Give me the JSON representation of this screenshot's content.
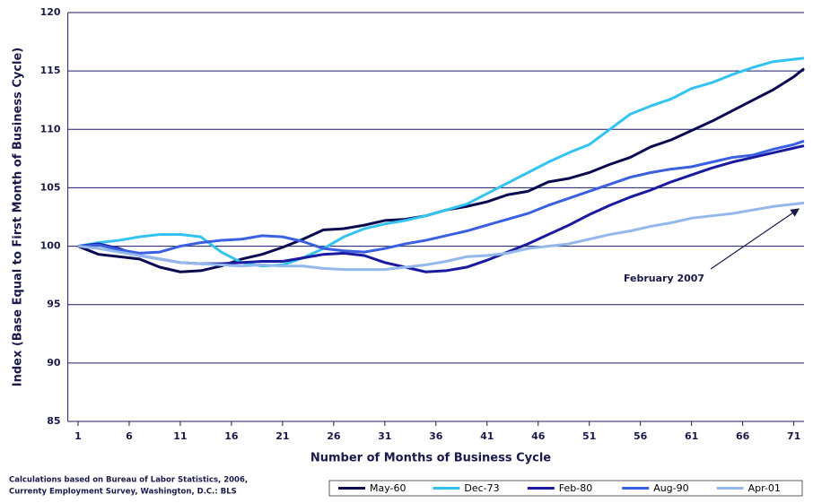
{
  "chart_data": {
    "type": "line",
    "x_label": "Number of Months of Business Cycle",
    "y_label": "Index (Base Equal to First Month of Business Cycle)",
    "annotation": "February 2007",
    "note": [
      "Calculations based on Bureau of Labor Statistics, 2006,",
      "Currenty Employment Survey, Washington, D.C.: BLS"
    ],
    "x": [
      1,
      3,
      5,
      7,
      9,
      11,
      13,
      15,
      17,
      19,
      21,
      23,
      25,
      27,
      29,
      31,
      33,
      35,
      37,
      39,
      41,
      43,
      45,
      47,
      49,
      51,
      53,
      55,
      57,
      59,
      61,
      63,
      65,
      67,
      69,
      71,
      72
    ],
    "series": [
      {
        "name": "May-60",
        "color": "#0a0a50",
        "values": [
          100,
          99.3,
          99.1,
          98.9,
          98.2,
          97.8,
          97.9,
          98.3,
          98.9,
          99.3,
          99.9,
          100.6,
          101.4,
          101.5,
          101.8,
          102.2,
          102.3,
          102.6,
          103.1,
          103.4,
          103.8,
          104.4,
          104.7,
          105.5,
          105.8,
          106.3,
          107.0,
          107.6,
          108.5,
          109.1,
          109.9,
          110.7,
          111.6,
          112.5,
          113.4,
          114.5,
          115.2
        ]
      },
      {
        "name": "Dec-73",
        "color": "#33c3f0",
        "values": [
          100,
          100.3,
          100.5,
          100.8,
          101,
          101,
          100.8,
          99.5,
          98.6,
          98.3,
          98.4,
          99,
          99.8,
          100.8,
          101.5,
          101.9,
          102.2,
          102.6,
          103.1,
          103.6,
          104.5,
          105.4,
          106.3,
          107.2,
          108,
          108.7,
          110,
          111.3,
          112,
          112.6,
          113.5,
          114,
          114.7,
          115.3,
          115.8,
          116,
          116.1
        ]
      },
      {
        "name": "Feb-80",
        "color": "#1a1aa0",
        "values": [
          100,
          100.2,
          99.8,
          99.2,
          98.9,
          98.6,
          98.5,
          98.5,
          98.6,
          98.7,
          98.7,
          99.0,
          99.3,
          99.4,
          99.2,
          98.6,
          98.2,
          97.8,
          97.9,
          98.2,
          98.8,
          99.5,
          100.2,
          101,
          101.8,
          102.7,
          103.5,
          104.2,
          104.8,
          105.5,
          106.1,
          106.7,
          107.2,
          107.6,
          108,
          108.4,
          108.6
        ]
      },
      {
        "name": "Aug-90",
        "color": "#3a5fe0",
        "values": [
          100,
          100.1,
          99.7,
          99.4,
          99.5,
          100,
          100.3,
          100.5,
          100.6,
          100.9,
          100.8,
          100.4,
          99.8,
          99.6,
          99.5,
          99.8,
          100.2,
          100.5,
          100.9,
          101.3,
          101.8,
          102.3,
          102.8,
          103.5,
          104.1,
          104.7,
          105.3,
          105.9,
          106.3,
          106.6,
          106.8,
          107.2,
          107.6,
          107.8,
          108.3,
          108.7,
          109
        ]
      },
      {
        "name": "Apr-01",
        "color": "#93b8ec",
        "values": [
          100,
          99.8,
          99.5,
          99.2,
          98.9,
          98.6,
          98.5,
          98.4,
          98.3,
          98.4,
          98.3,
          98.3,
          98.1,
          98,
          98,
          98,
          98.2,
          98.4,
          98.7,
          99.1,
          99.2,
          99.4,
          99.8,
          100,
          100.2,
          100.6,
          101,
          101.3,
          101.7,
          102,
          102.4,
          102.6,
          102.8,
          103.1,
          103.4,
          103.6,
          103.7
        ]
      }
    ],
    "xlim": [
      0,
      72
    ],
    "xticks": [
      1,
      6,
      11,
      16,
      21,
      26,
      31,
      36,
      41,
      46,
      51,
      56,
      61,
      66,
      71
    ],
    "ylim": [
      85,
      120
    ],
    "yticks": [
      85,
      90,
      95,
      100,
      105,
      110,
      115,
      120
    ],
    "grid": true
  }
}
